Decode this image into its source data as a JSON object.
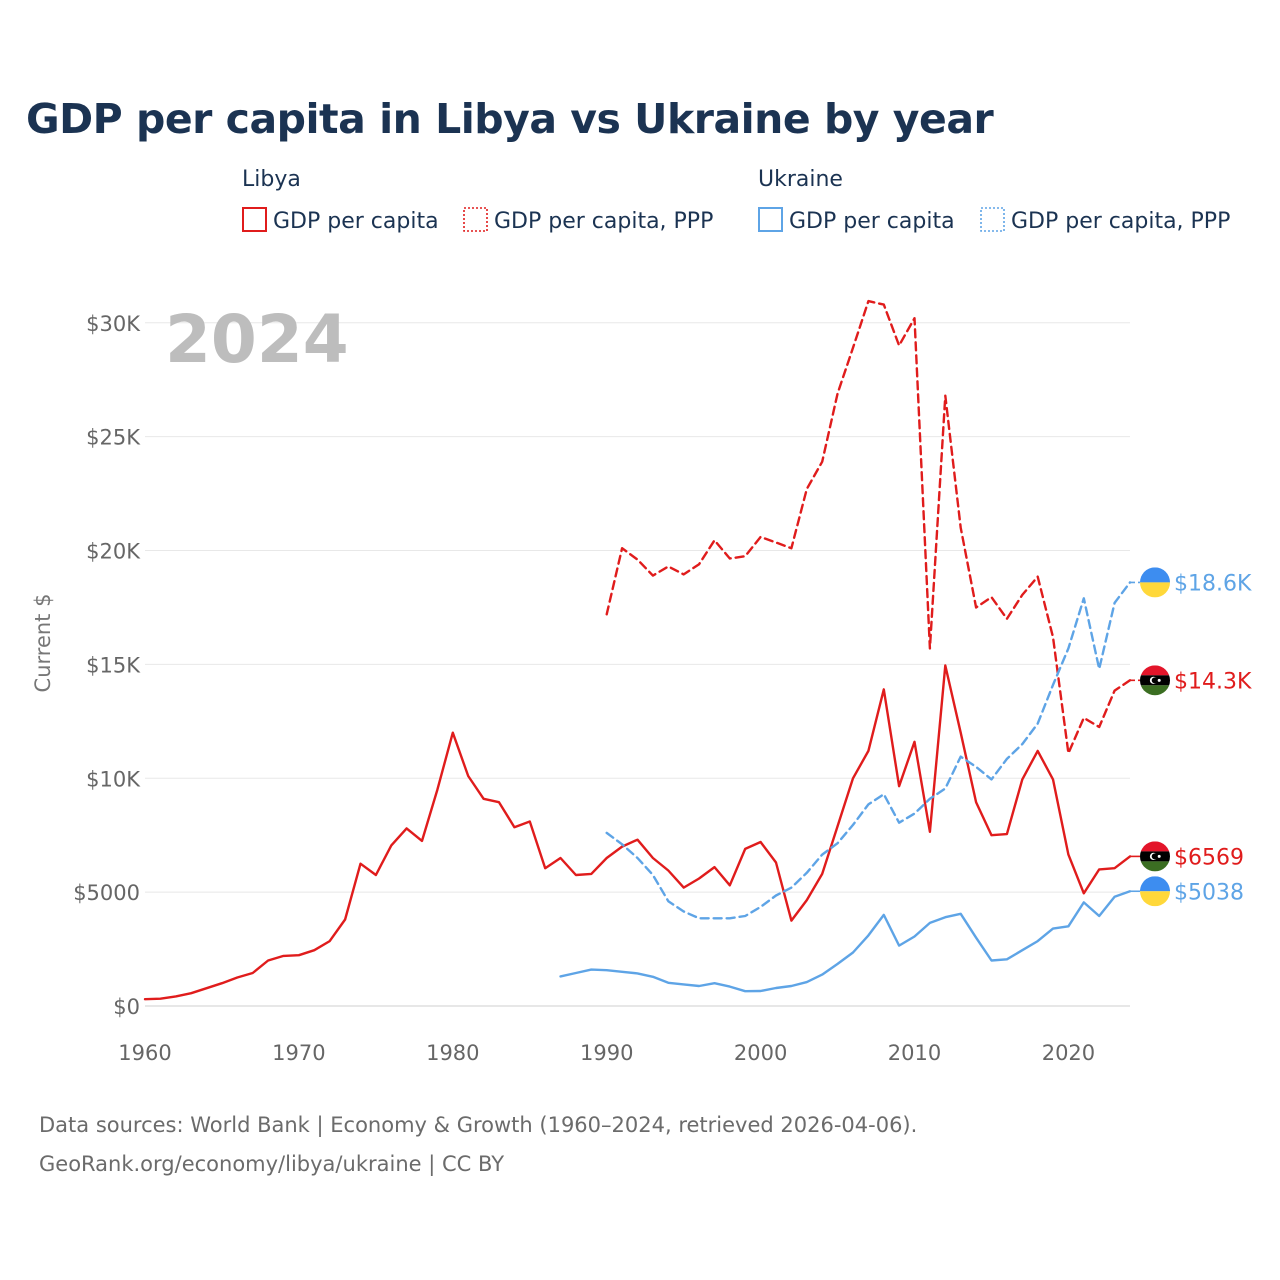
{
  "title": "GDP per capita in Libya vs Ukraine by year",
  "legend": {
    "groups": [
      {
        "name": "Libya",
        "color": "#e01c1c",
        "items": [
          {
            "label": "GDP per capita",
            "style": "solid"
          },
          {
            "label": "GDP per capita, PPP",
            "style": "dotted"
          }
        ]
      },
      {
        "name": "Ukraine",
        "color": "#5ea4e6",
        "items": [
          {
            "label": "GDP per capita",
            "style": "solid"
          },
          {
            "label": "GDP per capita, PPP",
            "style": "dotted"
          }
        ]
      }
    ]
  },
  "year_label": "2024",
  "source_lines": [
    "Data sources: World Bank | Economy & Growth (1960–2024, retrieved 2026-04-06).",
    "GeoRank.org/economy/libya/ukraine | CC BY"
  ],
  "chart_data": {
    "type": "line",
    "title": "GDP per capita in Libya vs Ukraine by year",
    "xlabel": "",
    "ylabel": "Current $",
    "xlim": [
      1960,
      2024
    ],
    "ylim": [
      0,
      31000
    ],
    "xticks": [
      1960,
      1970,
      1980,
      1990,
      2000,
      2010,
      2020
    ],
    "xtick_labels": [
      "1960",
      "1970",
      "1980",
      "1990",
      "2000",
      "2010",
      "2020"
    ],
    "yticks": [
      0,
      5000,
      10000,
      15000,
      20000,
      25000,
      30000
    ],
    "ytick_labels": [
      "$0",
      "$5000",
      "$10K",
      "$15K",
      "$20K",
      "$25K",
      "$30K"
    ],
    "grid": true,
    "series": [
      {
        "name": "Libya GDP per capita",
        "country": "Libya",
        "style": "solid",
        "color": "#e01c1c",
        "end_label": "$6569",
        "flag": "libya",
        "x": [
          1960,
          1961,
          1962,
          1963,
          1964,
          1965,
          1966,
          1967,
          1968,
          1969,
          1970,
          1971,
          1972,
          1973,
          1974,
          1975,
          1976,
          1977,
          1978,
          1979,
          1980,
          1981,
          1982,
          1983,
          1984,
          1985,
          1986,
          1987,
          1988,
          1989,
          1990,
          1991,
          1992,
          1993,
          1994,
          1995,
          1996,
          1997,
          1998,
          1999,
          2000,
          2001,
          2002,
          2003,
          2004,
          2005,
          2006,
          2007,
          2008,
          2009,
          2010,
          2011,
          2012,
          2013,
          2014,
          2015,
          2016,
          2017,
          2018,
          2019,
          2020,
          2021,
          2022,
          2023,
          2024
        ],
        "y": [
          300,
          320,
          420,
          560,
          780,
          1000,
          1250,
          1450,
          2000,
          2200,
          2230,
          2450,
          2850,
          3800,
          6250,
          5750,
          7050,
          7800,
          7250,
          9500,
          12000,
          10100,
          9100,
          8950,
          7850,
          8100,
          6050,
          6500,
          5750,
          5800,
          6500,
          7000,
          7300,
          6500,
          5950,
          5200,
          5600,
          6100,
          5300,
          6900,
          7200,
          6300,
          3750,
          4650,
          5800,
          7900,
          10000,
          11200,
          13900,
          9650,
          11600,
          7650,
          14950,
          12000,
          8950,
          7500,
          7550,
          9950,
          11200,
          9950,
          6650,
          4950,
          6000,
          6050,
          6569
        ]
      },
      {
        "name": "Libya GDP per capita, PPP",
        "country": "Libya",
        "style": "dashed",
        "color": "#e01c1c",
        "end_label": "$14.3K",
        "flag": "libya",
        "x": [
          1990,
          1991,
          1992,
          1993,
          1994,
          1995,
          1996,
          1997,
          1998,
          1999,
          2000,
          2001,
          2002,
          2003,
          2004,
          2005,
          2006,
          2007,
          2008,
          2009,
          2010,
          2011,
          2012,
          2013,
          2014,
          2015,
          2016,
          2017,
          2018,
          2019,
          2020,
          2021,
          2022,
          2023,
          2024
        ],
        "y": [
          17200,
          20100,
          19600,
          18900,
          19300,
          18950,
          19400,
          20450,
          19650,
          19750,
          20600,
          20350,
          20100,
          22700,
          23900,
          26900,
          28900,
          30950,
          30800,
          29000,
          30200,
          15700,
          26800,
          21000,
          17500,
          17950,
          17000,
          18050,
          18850,
          16200,
          11100,
          12650,
          12250,
          13850,
          14300
        ]
      },
      {
        "name": "Ukraine GDP per capita",
        "country": "Ukraine",
        "style": "solid",
        "color": "#5ea4e6",
        "end_label": "$5038",
        "flag": "ukraine",
        "x": [
          1987,
          1988,
          1989,
          1990,
          1991,
          1992,
          1993,
          1994,
          1995,
          1996,
          1997,
          1998,
          1999,
          2000,
          2001,
          2002,
          2003,
          2004,
          2005,
          2006,
          2007,
          2008,
          2009,
          2010,
          2011,
          2012,
          2013,
          2014,
          2015,
          2016,
          2017,
          2018,
          2019,
          2020,
          2021,
          2022,
          2023,
          2024
        ],
        "y": [
          1300,
          1450,
          1600,
          1570,
          1500,
          1430,
          1280,
          1020,
          950,
          880,
          1000,
          850,
          650,
          660,
          790,
          880,
          1050,
          1380,
          1850,
          2350,
          3100,
          4000,
          2650,
          3050,
          3650,
          3900,
          4050,
          3000,
          2000,
          2050,
          2450,
          2850,
          3400,
          3500,
          4550,
          3950,
          4800,
          5038
        ]
      },
      {
        "name": "Ukraine GDP per capita, PPP",
        "country": "Ukraine",
        "style": "dashed",
        "color": "#5ea4e6",
        "end_label": "$18.6K",
        "flag": "ukraine",
        "x": [
          1990,
          1991,
          1992,
          1993,
          1994,
          1995,
          1996,
          1997,
          1998,
          1999,
          2000,
          2001,
          2002,
          2003,
          2004,
          2005,
          2006,
          2007,
          2008,
          2009,
          2010,
          2011,
          2012,
          2013,
          2014,
          2015,
          2016,
          2017,
          2018,
          2019,
          2020,
          2021,
          2022,
          2023,
          2024
        ],
        "y": [
          7600,
          7100,
          6500,
          5750,
          4600,
          4150,
          3850,
          3850,
          3850,
          3950,
          4350,
          4850,
          5200,
          5850,
          6650,
          7150,
          7950,
          8850,
          9300,
          8050,
          8450,
          9100,
          9550,
          10950,
          10500,
          9950,
          10850,
          11500,
          12400,
          14100,
          15700,
          17900,
          14800,
          17700,
          18600
        ]
      }
    ]
  }
}
